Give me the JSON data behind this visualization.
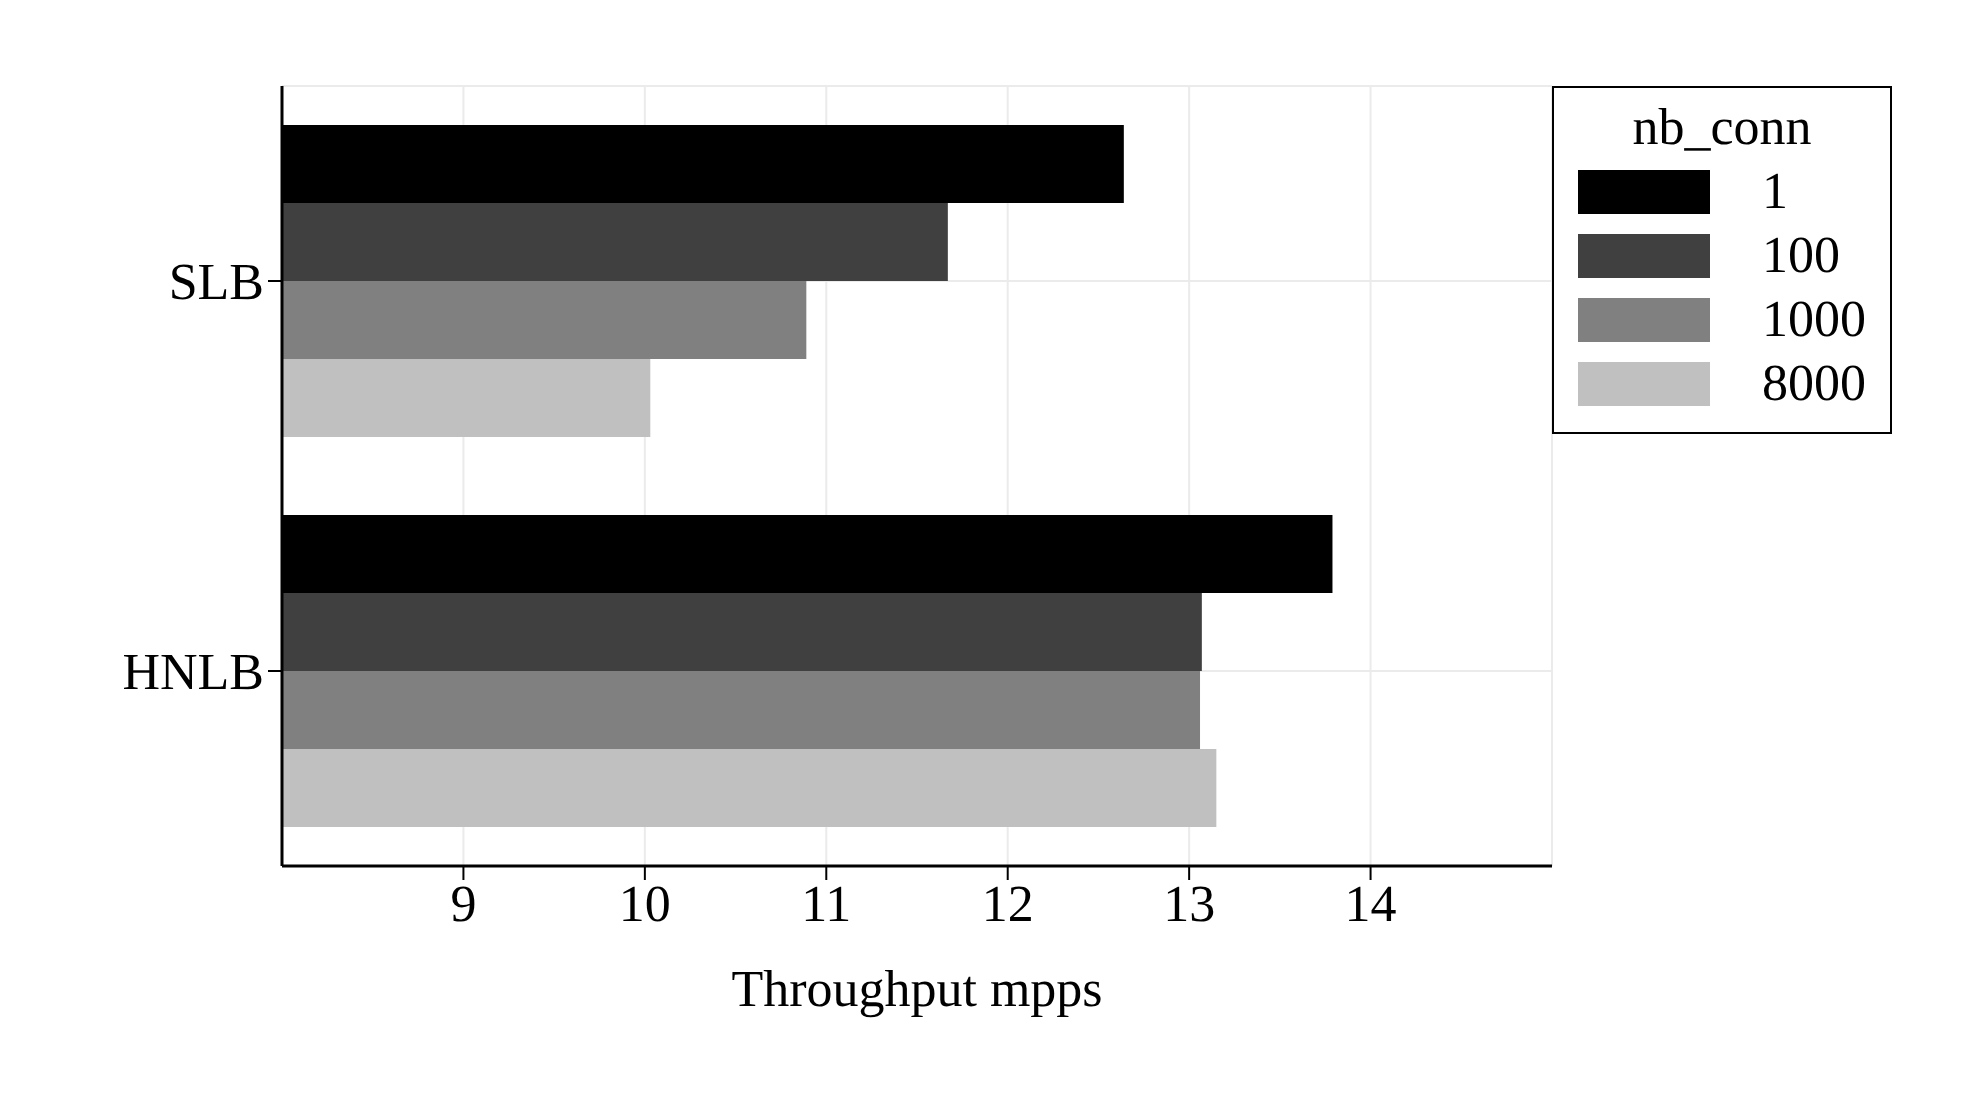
{
  "chart_data": {
    "type": "bar",
    "orientation": "horizontal",
    "xlabel": "Throughput mpps",
    "legend_title": "nb_conn",
    "categories": [
      "SLB",
      "HNLB"
    ],
    "series": [
      {
        "name": "1",
        "color": "#000000",
        "values": [
          12.64,
          13.79
        ]
      },
      {
        "name": "100",
        "color": "#404040",
        "values": [
          11.67,
          13.07
        ]
      },
      {
        "name": "1000",
        "color": "#808080",
        "values": [
          10.89,
          13.06
        ]
      },
      {
        "name": "8000",
        "color": "#c0c0c0",
        "values": [
          10.03,
          13.15
        ]
      }
    ],
    "xlim": [
      8,
      15
    ],
    "xticks": [
      9,
      10,
      11,
      12,
      13,
      14
    ],
    "grid": true,
    "legend": "top right"
  }
}
